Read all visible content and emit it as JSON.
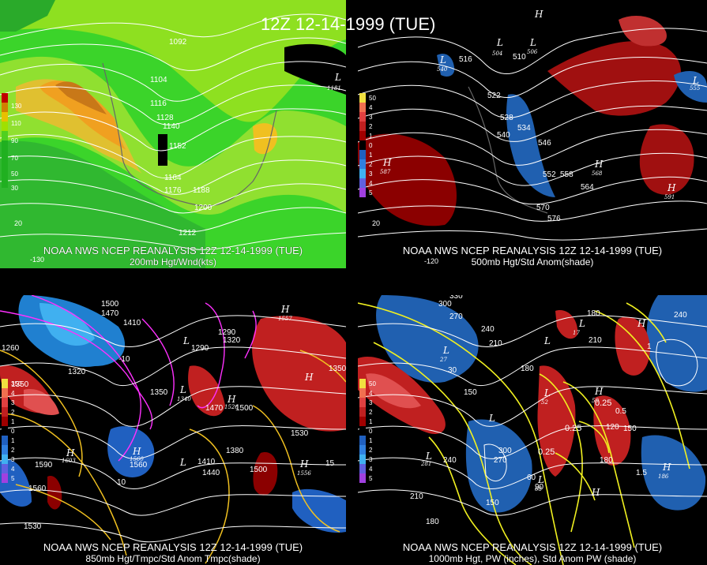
{
  "title": "12Z 12-14-1999 (TUE)",
  "panels": [
    {
      "caption_line1": "NOAA NWS NCEP REANALYSIS 12Z 12-14-1999 (TUE)",
      "caption_line2": "200mb Hgt/Wnd(kts)",
      "legend": [
        "130",
        "110",
        "90",
        "70",
        "50",
        "30"
      ],
      "legend_colors": [
        "#c00000",
        "#d08000",
        "#e8c000",
        "#a0e000",
        "#50d020",
        "#20b020"
      ],
      "contour_labels": [
        "1092",
        "1104",
        "1116",
        "1128",
        "1140",
        "1152",
        "1164",
        "1176",
        "1188",
        "1200",
        "1212"
      ],
      "pressure_labels": [
        "L",
        "1181"
      ],
      "tick_labels": [
        "20",
        "-130"
      ]
    },
    {
      "caption_line1": "NOAA NWS NCEP REANALYSIS 12Z 12-14-1999 (TUE)",
      "caption_line2": "500mb Hgt/Std Anom(shade)",
      "legend": [
        "50",
        "4",
        "3",
        "2",
        "1",
        "0",
        "1",
        "2",
        "3",
        "4",
        "5"
      ],
      "legend_colors": [
        "#f0e040",
        "#f07050",
        "#e04040",
        "#c02020",
        "#a00000",
        "#000000",
        "#2060c0",
        "#3080e0",
        "#40b0f0",
        "#6060e0",
        "#a040e0"
      ],
      "contour_labels": [
        "516",
        "510",
        "522",
        "528",
        "534",
        "540",
        "546",
        "552",
        "558",
        "564",
        "570",
        "576"
      ],
      "pressure_labels": [
        "H",
        "L",
        "L",
        "L",
        "L",
        "H",
        "H",
        "L",
        "H"
      ],
      "pressure_values": [
        "587",
        "540",
        "504",
        "506",
        "555",
        "591",
        "568"
      ],
      "tick_labels": [
        "20",
        "-120"
      ]
    },
    {
      "caption_line1": "NOAA NWS NCEP REANALYSIS 12Z 12-14-1999 (TUE)",
      "caption_line2": "850mb Hgt/Tmpc/Std Anom Tmpc(shade)",
      "legend": [
        "350",
        "4",
        "3",
        "2",
        "1",
        "0",
        "1",
        "2",
        "3",
        "4",
        "5"
      ],
      "legend_colors": [
        "#f0e040",
        "#f07050",
        "#e04040",
        "#c02020",
        "#a00000",
        "#000000",
        "#2060c0",
        "#3080e0",
        "#40b0f0",
        "#6060e0",
        "#a040e0"
      ],
      "contour_labels": [
        "1500",
        "1470",
        "1410",
        "1290",
        "1320",
        "1260",
        "1290",
        "1320",
        "1350",
        "1470",
        "1500",
        "1350",
        "1530",
        "1590",
        "1560",
        "1410",
        "1440",
        "1380",
        "1500",
        "1530",
        "1560"
      ],
      "temp_labels": [
        "-10",
        "-20",
        "10",
        "15"
      ],
      "pressure_labels": [
        "H",
        "L",
        "L",
        "H",
        "H",
        "L",
        "L",
        "H",
        "H",
        "L"
      ],
      "pressure_values": [
        "1557",
        "1340",
        "1603",
        "1560",
        "1526",
        "1556"
      ]
    },
    {
      "caption_line1": "NOAA NWS NCEP REANALYSIS 12Z 12-14-1999 (TUE)",
      "caption_line2": "1000mb Hgt, PW (inches), Std Anom PW (shade)",
      "legend": [
        "50",
        "4",
        "3",
        "2",
        "1",
        "0",
        "1",
        "2",
        "3",
        "4",
        "5"
      ],
      "legend_colors": [
        "#f0e040",
        "#f07050",
        "#e04040",
        "#c02020",
        "#a00000",
        "#000000",
        "#2060c0",
        "#3080e0",
        "#40b0f0",
        "#6060e0",
        "#a040e0"
      ],
      "contour_labels": [
        "330",
        "300",
        "270",
        "240",
        "210",
        "180",
        "150",
        "120",
        "90",
        "60",
        "30",
        "240",
        "270",
        "300",
        "210",
        "150",
        "180",
        "90",
        "180",
        "150",
        "210",
        "180",
        "240"
      ],
      "pw_labels": [
        "0.25",
        "0.25",
        "0.25",
        "0.5",
        "1",
        "1.5",
        "0.75"
      ],
      "pressure_labels": [
        "L",
        "L",
        "L",
        "H",
        "L",
        "L",
        "L",
        "L",
        "H",
        "H",
        "H",
        "L",
        "L"
      ],
      "pressure_values": [
        "27",
        "17",
        "52",
        "50",
        "19",
        "281",
        "186",
        "68"
      ]
    }
  ]
}
